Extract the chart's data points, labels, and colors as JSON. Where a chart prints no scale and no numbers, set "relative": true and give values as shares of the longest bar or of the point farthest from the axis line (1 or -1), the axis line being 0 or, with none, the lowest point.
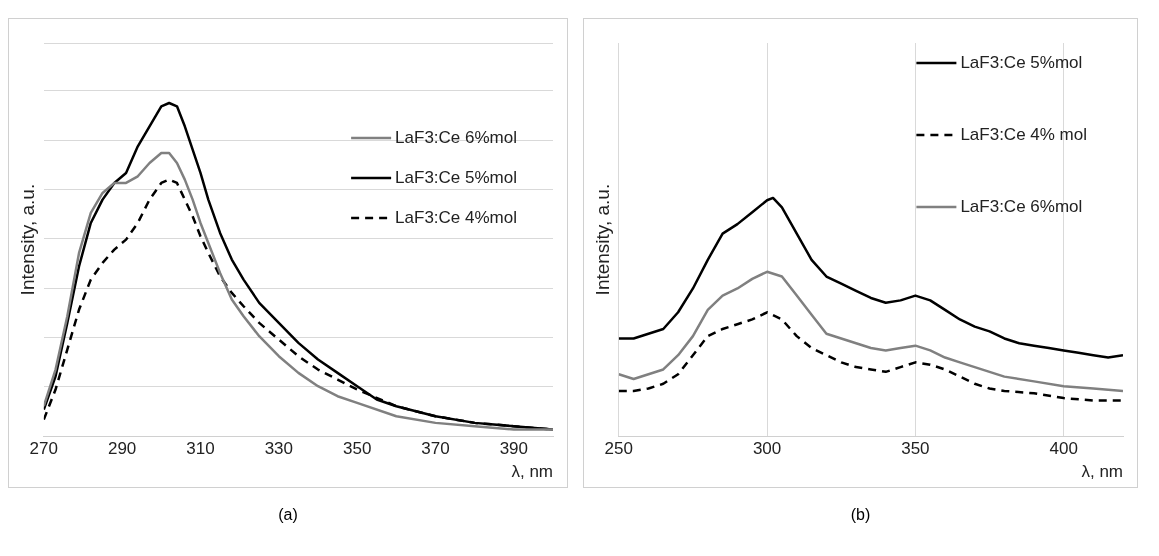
{
  "chart_data": [
    {
      "type": "line",
      "relative": true,
      "xlabel": "λ, nm",
      "ylabel": "Intensity, a.u.",
      "xlim": [
        270,
        400
      ],
      "xticks": [
        270,
        290,
        310,
        330,
        350,
        370,
        390
      ],
      "grid": "y",
      "legend": "top right",
      "marker": "none",
      "annotations": [
        "(a)"
      ],
      "series": [
        {
          "name": "LaF3:Ce 6%mol",
          "color": "#808080",
          "line_style": "solid",
          "x": [
            270,
            273,
            276,
            279,
            282,
            285,
            288,
            291,
            294,
            297,
            300,
            302,
            304,
            306,
            308,
            310,
            312,
            315,
            318,
            321,
            325,
            330,
            335,
            340,
            345,
            350,
            360,
            370,
            380,
            390,
            400
          ],
          "values": [
            0.09,
            0.2,
            0.36,
            0.55,
            0.67,
            0.73,
            0.76,
            0.76,
            0.78,
            0.82,
            0.85,
            0.85,
            0.82,
            0.77,
            0.71,
            0.64,
            0.58,
            0.49,
            0.41,
            0.36,
            0.3,
            0.24,
            0.19,
            0.15,
            0.12,
            0.1,
            0.06,
            0.04,
            0.03,
            0.02,
            0.02
          ]
        },
        {
          "name": "LaF3:Ce 5%mol",
          "color": "#000000",
          "line_style": "solid",
          "x": [
            270,
            273,
            276,
            279,
            282,
            285,
            288,
            291,
            294,
            297,
            300,
            302,
            304,
            306,
            308,
            310,
            312,
            315,
            318,
            321,
            325,
            330,
            335,
            340,
            345,
            350,
            355,
            360,
            370,
            380,
            390,
            400
          ],
          "values": [
            0.08,
            0.18,
            0.34,
            0.51,
            0.64,
            0.71,
            0.76,
            0.79,
            0.87,
            0.93,
            0.99,
            1,
            0.99,
            0.93,
            0.86,
            0.79,
            0.71,
            0.61,
            0.53,
            0.47,
            0.4,
            0.34,
            0.28,
            0.23,
            0.19,
            0.15,
            0.11,
            0.09,
            0.06,
            0.04,
            0.03,
            0.02
          ]
        },
        {
          "name": "LaF3:Ce 4%mol",
          "color": "#000000",
          "line_style": "dashed",
          "x": [
            270,
            273,
            276,
            279,
            282,
            285,
            288,
            291,
            294,
            297,
            300,
            302,
            304,
            306,
            308,
            310,
            312,
            315,
            318,
            321,
            325,
            330,
            335,
            340,
            345,
            350,
            360,
            370,
            380,
            390,
            400
          ],
          "values": [
            0.05,
            0.14,
            0.26,
            0.38,
            0.47,
            0.52,
            0.56,
            0.59,
            0.64,
            0.71,
            0.76,
            0.77,
            0.76,
            0.71,
            0.66,
            0.6,
            0.55,
            0.48,
            0.43,
            0.39,
            0.34,
            0.29,
            0.24,
            0.2,
            0.17,
            0.14,
            0.09,
            0.06,
            0.04,
            0.03,
            0.02
          ]
        }
      ]
    },
    {
      "type": "line",
      "relative": true,
      "xlabel": "λ, nm",
      "ylabel": "Intensity, a.u.",
      "xlim": [
        250,
        420
      ],
      "xticks": [
        250,
        300,
        350,
        400
      ],
      "grid": "x",
      "legend": "top right",
      "marker": "none",
      "annotations": [
        "(b)"
      ],
      "series": [
        {
          "name": "LaF3:Ce 5%mol",
          "color": "#000000",
          "line_style": "solid",
          "x": [
            250,
            255,
            260,
            265,
            270,
            275,
            280,
            285,
            290,
            295,
            300,
            302,
            305,
            310,
            315,
            320,
            325,
            330,
            335,
            340,
            345,
            350,
            355,
            360,
            365,
            370,
            375,
            380,
            385,
            390,
            395,
            400,
            405,
            410,
            415,
            420
          ],
          "values": [
            0.41,
            0.41,
            0.43,
            0.45,
            0.52,
            0.62,
            0.74,
            0.85,
            0.89,
            0.94,
            0.99,
            1,
            0.96,
            0.85,
            0.74,
            0.67,
            0.64,
            0.61,
            0.58,
            0.56,
            0.57,
            0.59,
            0.57,
            0.53,
            0.49,
            0.46,
            0.44,
            0.41,
            0.39,
            0.38,
            0.37,
            0.36,
            0.35,
            0.34,
            0.33,
            0.34
          ]
        },
        {
          "name": "LaF3:Ce 4% mol",
          "color": "#000000",
          "line_style": "dashed",
          "x": [
            250,
            255,
            260,
            265,
            270,
            275,
            280,
            285,
            290,
            295,
            300,
            305,
            310,
            315,
            320,
            325,
            330,
            335,
            340,
            345,
            350,
            355,
            360,
            365,
            370,
            375,
            380,
            390,
            400,
            410,
            420
          ],
          "values": [
            0.19,
            0.19,
            0.2,
            0.22,
            0.26,
            0.34,
            0.42,
            0.45,
            0.47,
            0.49,
            0.52,
            0.49,
            0.42,
            0.37,
            0.34,
            0.31,
            0.29,
            0.28,
            0.27,
            0.29,
            0.31,
            0.3,
            0.28,
            0.25,
            0.22,
            0.2,
            0.19,
            0.18,
            0.16,
            0.15,
            0.15
          ]
        },
        {
          "name": "LaF3:Ce 6%mol",
          "color": "#808080",
          "line_style": "solid",
          "x": [
            250,
            255,
            260,
            265,
            270,
            275,
            280,
            285,
            290,
            295,
            300,
            305,
            310,
            315,
            320,
            325,
            330,
            335,
            340,
            345,
            350,
            355,
            360,
            365,
            370,
            375,
            380,
            390,
            400,
            410,
            420
          ],
          "values": [
            0.26,
            0.24,
            0.26,
            0.28,
            0.34,
            0.42,
            0.53,
            0.59,
            0.62,
            0.66,
            0.69,
            0.67,
            0.59,
            0.51,
            0.43,
            0.41,
            0.39,
            0.37,
            0.36,
            0.37,
            0.38,
            0.36,
            0.33,
            0.31,
            0.29,
            0.27,
            0.25,
            0.23,
            0.21,
            0.2,
            0.19
          ]
        }
      ]
    }
  ]
}
